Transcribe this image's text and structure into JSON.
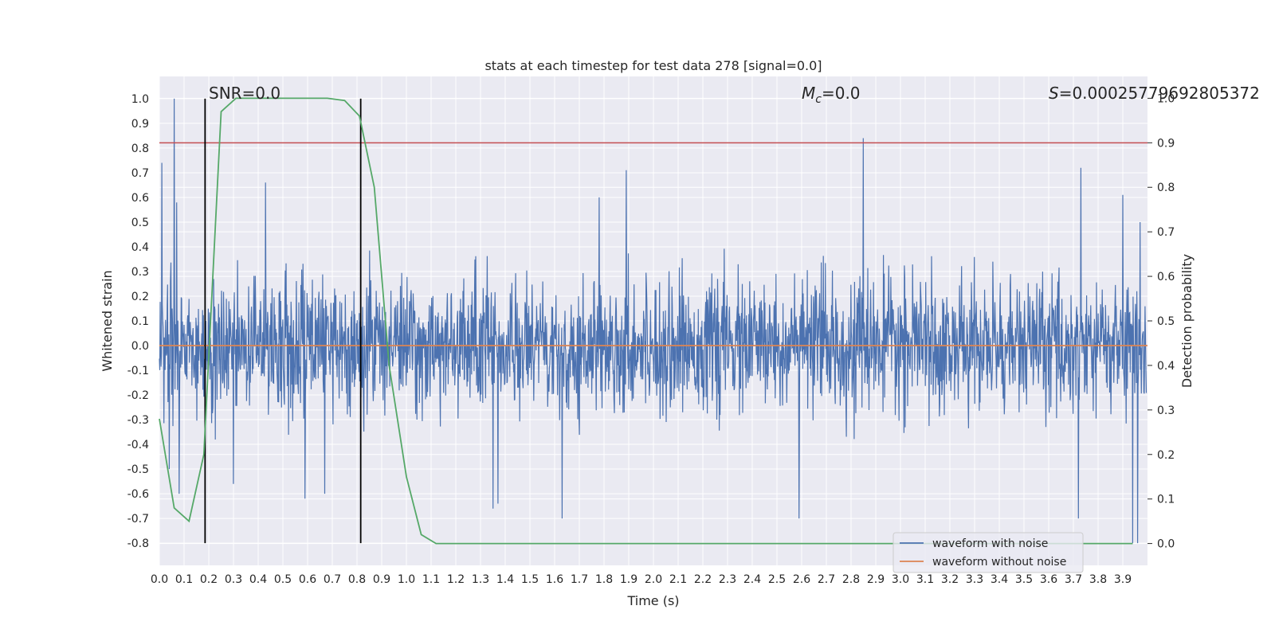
{
  "chart_data": {
    "type": "line",
    "title": "stats at each timestep for test data 278 [signal=0.0]",
    "xlabel": "Time (s)",
    "ylabel": "Whitened strain",
    "y2label": "Detection probability",
    "xlim": [
      0.0,
      4.0
    ],
    "ylim": [
      -0.89,
      1.09
    ],
    "y2lim": [
      -0.049,
      1.049
    ],
    "x_ticks": [
      "0.0",
      "0.1",
      "0.2",
      "0.3",
      "0.4",
      "0.5",
      "0.6",
      "0.7",
      "0.8",
      "0.9",
      "1.0",
      "1.1",
      "1.2",
      "1.3",
      "1.4",
      "1.5",
      "1.6",
      "1.7",
      "1.8",
      "1.9",
      "2.0",
      "2.1",
      "2.2",
      "2.3",
      "2.4",
      "2.5",
      "2.6",
      "2.7",
      "2.8",
      "2.9",
      "3.0",
      "3.1",
      "3.2",
      "3.3",
      "3.4",
      "3.5",
      "3.6",
      "3.7",
      "3.8",
      "3.9"
    ],
    "y_ticks": [
      "1.0",
      "0.9",
      "0.8",
      "0.7",
      "0.6",
      "0.5",
      "0.4",
      "0.3",
      "0.2",
      "0.1",
      "0.0",
      "-0.1",
      "-0.2",
      "-0.3",
      "-0.4",
      "-0.5",
      "-0.6",
      "-0.7",
      "-0.8"
    ],
    "y2_ticks": [
      "1.0",
      "0.9",
      "0.8",
      "0.7",
      "0.6",
      "0.5",
      "0.4",
      "0.3",
      "0.2",
      "0.1",
      "0.0"
    ],
    "grid": true,
    "legend_position": "lower-right",
    "series": [
      {
        "name": "waveform with noise",
        "color": "#4c72b0",
        "note_type": "noise",
        "peaks": [
          {
            "x": 0.01,
            "y": 0.74
          },
          {
            "x": 0.06,
            "y": 1.0
          },
          {
            "x": 0.07,
            "y": 0.58
          },
          {
            "x": 0.43,
            "y": 0.66
          },
          {
            "x": 1.78,
            "y": 0.6
          },
          {
            "x": 1.89,
            "y": 0.71
          },
          {
            "x": 2.85,
            "y": 0.84
          },
          {
            "x": 3.73,
            "y": 0.72
          },
          {
            "x": 3.9,
            "y": 0.61
          },
          {
            "x": 3.97,
            "y": 0.5
          },
          {
            "x": 0.04,
            "y": -0.5
          },
          {
            "x": 0.08,
            "y": -0.6
          },
          {
            "x": 0.3,
            "y": -0.56
          },
          {
            "x": 0.59,
            "y": -0.62
          },
          {
            "x": 0.67,
            "y": -0.6
          },
          {
            "x": 1.35,
            "y": -0.66
          },
          {
            "x": 1.37,
            "y": -0.64
          },
          {
            "x": 1.63,
            "y": -0.7
          },
          {
            "x": 2.59,
            "y": -0.7
          },
          {
            "x": 3.72,
            "y": -0.7
          },
          {
            "x": 3.94,
            "y": -0.8
          },
          {
            "x": 3.96,
            "y": -0.8
          }
        ]
      },
      {
        "name": "waveform without noise",
        "color": "#dd8452",
        "value": 0.0
      },
      {
        "name": "Detection probability",
        "color": "#55a868",
        "axis": "right",
        "x": [
          0.0,
          0.06,
          0.12,
          0.18,
          0.25,
          0.31,
          0.37,
          0.43,
          0.5,
          0.56,
          0.62,
          0.68,
          0.75,
          0.81,
          0.87,
          0.93,
          1.0,
          1.06,
          1.12,
          1.18,
          3.94
        ],
        "y": [
          0.28,
          0.08,
          0.05,
          0.2,
          0.97,
          1.0,
          1.0,
          1.0,
          1.0,
          1.0,
          1.0,
          1.0,
          0.995,
          0.96,
          0.8,
          0.4,
          0.15,
          0.02,
          0.0,
          0.0,
          0.0
        ]
      }
    ],
    "threshold": {
      "value": 0.9,
      "axis": "right",
      "color": "#c44e52"
    },
    "vlines": [
      {
        "x": 0.185,
        "color": "#000000"
      },
      {
        "x": 0.815,
        "color": "#000000"
      }
    ],
    "annotations": [
      {
        "text": "SNR=0.0",
        "x": 0.2
      },
      {
        "text": "M",
        "sub": "c",
        "suffix": "=0.0",
        "x": 2.6
      },
      {
        "text": "S",
        "suffix": "=0.00025779692805372",
        "x": 3.6
      }
    ]
  }
}
